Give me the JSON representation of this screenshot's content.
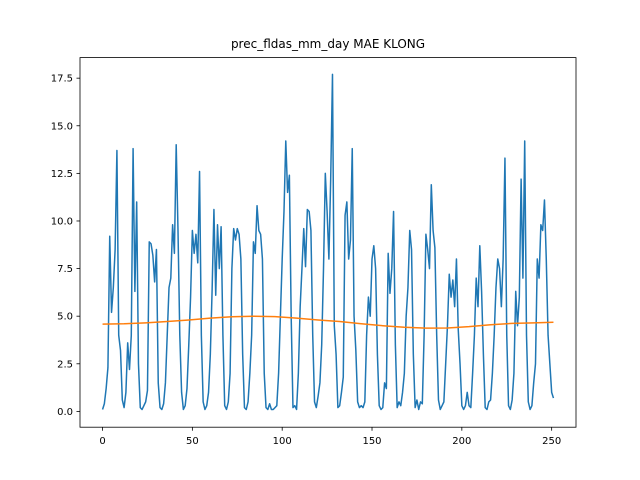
{
  "chart_data": {
    "type": "line",
    "title": "prec_fldas_mm_day MAE KLONG",
    "x": [
      0,
      1,
      2,
      3,
      4,
      5,
      6,
      7,
      8,
      9,
      10,
      11,
      12,
      13,
      14,
      15,
      16,
      17,
      18,
      19,
      20,
      21,
      22,
      23,
      24,
      25,
      26,
      27,
      28,
      29,
      30,
      31,
      32,
      33,
      34,
      35,
      36,
      37,
      38,
      39,
      40,
      41,
      42,
      43,
      44,
      45,
      46,
      47,
      48,
      49,
      50,
      51,
      52,
      53,
      54,
      55,
      56,
      57,
      58,
      59,
      60,
      61,
      62,
      63,
      64,
      65,
      66,
      67,
      68,
      69,
      70,
      71,
      72,
      73,
      74,
      75,
      76,
      77,
      78,
      79,
      80,
      81,
      82,
      83,
      84,
      85,
      86,
      87,
      88,
      89,
      90,
      91,
      92,
      93,
      94,
      95,
      96,
      97,
      98,
      99,
      100,
      101,
      102,
      103,
      104,
      105,
      106,
      107,
      108,
      109,
      110,
      111,
      112,
      113,
      114,
      115,
      116,
      117,
      118,
      119,
      120,
      121,
      122,
      123,
      124,
      125,
      126,
      127,
      128,
      129,
      130,
      131,
      132,
      133,
      134,
      135,
      136,
      137,
      138,
      139,
      140,
      141,
      142,
      143,
      144,
      145,
      146,
      147,
      148,
      149,
      150,
      151,
      152,
      153,
      154,
      155,
      156,
      157,
      158,
      159,
      160,
      161,
      162,
      163,
      164,
      165,
      166,
      167,
      168,
      169,
      170,
      171,
      172,
      173,
      174,
      175,
      176,
      177,
      178,
      179,
      180,
      181,
      182,
      183,
      184,
      185,
      186,
      187,
      188,
      189,
      190,
      191,
      192,
      193,
      194,
      195,
      196,
      197,
      198,
      199,
      200,
      201,
      202,
      203,
      204,
      205,
      206,
      207,
      208,
      209,
      210,
      211,
      212,
      213,
      214,
      215,
      216,
      217,
      218,
      219,
      220,
      221,
      222,
      223,
      224,
      225,
      226,
      227,
      228,
      229,
      230,
      231,
      232,
      233,
      234,
      235,
      236,
      237,
      238,
      239,
      240,
      241,
      242,
      243,
      244,
      245,
      246,
      247,
      248,
      249,
      250,
      251
    ],
    "series": [
      {
        "color": "#1f77b4",
        "values": [
          0.1,
          0.4,
          1.2,
          2.3,
          9.2,
          5.2,
          6.5,
          8.5,
          13.7,
          4.0,
          3.2,
          0.6,
          0.2,
          1.0,
          3.6,
          2.2,
          4.0,
          13.8,
          6.3,
          11.0,
          2.5,
          0.2,
          0.1,
          0.3,
          0.5,
          1.1,
          8.9,
          8.8,
          8.2,
          6.8,
          8.5,
          1.5,
          0.2,
          0.1,
          0.4,
          1.5,
          4.0,
          6.5,
          7.0,
          9.8,
          8.3,
          14.0,
          9.5,
          4.0,
          1.0,
          0.1,
          0.3,
          1.2,
          3.5,
          6.0,
          9.5,
          8.3,
          9.3,
          7.8,
          12.6,
          4.0,
          0.5,
          0.1,
          0.3,
          1.0,
          3.0,
          6.4,
          10.6,
          6.1,
          9.8,
          7.5,
          9.7,
          4.0,
          0.3,
          0.1,
          0.5,
          2.0,
          7.5,
          9.6,
          9.0,
          9.6,
          9.3,
          8.0,
          3.0,
          0.2,
          0.1,
          0.5,
          2.0,
          4.0,
          8.9,
          8.3,
          10.8,
          9.5,
          9.3,
          8.0,
          2.0,
          0.2,
          0.1,
          0.4,
          0.1,
          0.1,
          0.2,
          0.3,
          2.0,
          5.0,
          8.0,
          10.5,
          14.2,
          11.5,
          12.4,
          5.0,
          0.2,
          0.3,
          0.1,
          2.0,
          5.5,
          7.5,
          9.6,
          7.6,
          10.6,
          10.5,
          9.5,
          4.0,
          0.5,
          0.2,
          0.8,
          1.5,
          3.5,
          7.5,
          12.5,
          10.5,
          8.0,
          12.2,
          17.7,
          4.5,
          3.0,
          0.2,
          0.3,
          1.0,
          1.8,
          10.3,
          11.0,
          8.0,
          9.0,
          13.8,
          5.0,
          3.2,
          0.5,
          0.2,
          0.3,
          0.2,
          0.5,
          4.0,
          6.0,
          5.0,
          8.0,
          8.7,
          7.5,
          3.0,
          0.3,
          0.1,
          0.2,
          1.5,
          1.2,
          8.3,
          6.2,
          7.5,
          10.5,
          3.5,
          0.2,
          0.5,
          0.3,
          1.0,
          2.0,
          5.0,
          6.5,
          9.5,
          8.5,
          3.0,
          0.2,
          0.6,
          0.1,
          0.5,
          0.4,
          4.0,
          9.3,
          8.5,
          7.5,
          11.9,
          9.5,
          8.6,
          4.0,
          0.6,
          0.1,
          0.3,
          0.5,
          2.5,
          4.5,
          7.2,
          6.0,
          6.9,
          5.5,
          8.0,
          4.3,
          2.5,
          0.3,
          0.1,
          0.3,
          1.0,
          0.3,
          0.2,
          2.0,
          4.0,
          7.0,
          5.5,
          8.7,
          6.3,
          3.0,
          0.2,
          0.1,
          0.5,
          0.6,
          2.0,
          4.0,
          6.5,
          8.0,
          7.5,
          5.5,
          8.0,
          13.3,
          4.0,
          0.3,
          0.1,
          0.6,
          2.0,
          6.3,
          4.5,
          6.0,
          12.2,
          7.0,
          14.2,
          4.0,
          0.5,
          0.1,
          0.3,
          1.5,
          2.5,
          8.0,
          7.0,
          9.8,
          9.5,
          11.1,
          8.0,
          4.0,
          2.5,
          1.0,
          0.7
        ]
      },
      {
        "color": "#ff7f0e",
        "x": [
          0,
          12,
          24,
          36,
          48,
          60,
          72,
          84,
          96,
          108,
          120,
          132,
          144,
          156,
          168,
          180,
          192,
          204,
          216,
          228,
          240,
          251
        ],
        "values": [
          4.58,
          4.6,
          4.65,
          4.72,
          4.8,
          4.9,
          4.97,
          5.0,
          4.98,
          4.9,
          4.8,
          4.72,
          4.6,
          4.5,
          4.42,
          4.37,
          4.38,
          4.45,
          4.55,
          4.62,
          4.65,
          4.68
        ]
      }
    ],
    "xlim": [
      -12.55,
      263.55
    ],
    "xticks": [
      0,
      50,
      100,
      150,
      200,
      250
    ],
    "ylim": [
      -0.83,
      18.58
    ],
    "yticks": [
      {
        "value": 0,
        "label": "0.0"
      },
      2.5,
      {
        "value": 5,
        "label": "5.0"
      },
      7.5,
      {
        "value": 10,
        "label": "10.0"
      },
      12.5,
      {
        "value": 15,
        "label": "15.0"
      },
      17.5
    ]
  }
}
